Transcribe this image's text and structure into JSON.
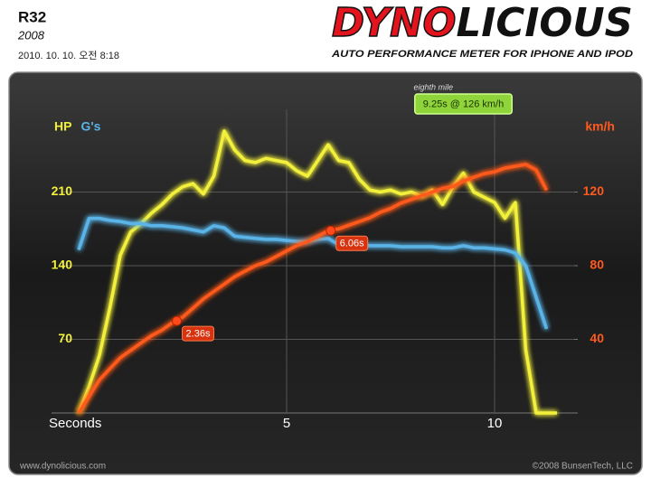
{
  "header": {
    "title": "R32",
    "subtitle": "2008",
    "date": "2010. 10. 10. 오전 8:18"
  },
  "logo": {
    "red": "DYNO",
    "black": "LICIOUS",
    "tagline": "AUTO PERFORMANCE METER FOR IPHONE AND IPOD"
  },
  "footer": {
    "left": "www.dynolicious.com",
    "right": "©2008 BunsenTech, LLC"
  },
  "chart_data": {
    "type": "line",
    "xlabel": "Seconds",
    "x": [
      0,
      0.25,
      0.5,
      0.75,
      1,
      1.25,
      1.5,
      1.75,
      2,
      2.25,
      2.5,
      2.75,
      3,
      3.25,
      3.5,
      3.75,
      4,
      4.25,
      4.5,
      4.75,
      5,
      5.25,
      5.5,
      5.75,
      6,
      6.25,
      6.5,
      6.75,
      7,
      7.25,
      7.5,
      7.75,
      8,
      8.25,
      8.5,
      8.75,
      9,
      9.25,
      9.5,
      9.75,
      10,
      10.25,
      10.5,
      10.75,
      11,
      11.25,
      11.5
    ],
    "series": [
      {
        "name": "HP",
        "color": "#f2f03a",
        "axis": "y",
        "values": [
          0,
          25,
          55,
          100,
          150,
          172,
          180,
          190,
          198,
          208,
          215,
          218,
          208,
          225,
          268,
          250,
          240,
          238,
          242,
          240,
          238,
          230,
          225,
          240,
          255,
          240,
          238,
          222,
          212,
          210,
          212,
          208,
          210,
          206,
          212,
          198,
          215,
          228,
          210,
          205,
          200,
          185,
          200,
          60,
          0,
          0,
          0
        ]
      },
      {
        "name": "G's",
        "color": "#5ab4e8",
        "axis": "y",
        "values": [
          155,
          185,
          185,
          183,
          182,
          180,
          180,
          178,
          178,
          177,
          176,
          174,
          172,
          178,
          176,
          168,
          167,
          166,
          165,
          165,
          164,
          163,
          163,
          165,
          166,
          160,
          160,
          160,
          159,
          159,
          159,
          158,
          158,
          158,
          158,
          157,
          157,
          159,
          157,
          157,
          156,
          155,
          152,
          140,
          110,
          80,
          null
        ]
      },
      {
        "name": "km/h",
        "color": "#ff5a1e",
        "axis": "y2",
        "values": [
          0,
          9,
          18,
          24,
          30,
          34,
          38,
          42,
          45,
          49,
          52,
          57,
          62,
          66,
          70,
          74,
          77,
          80,
          82,
          85,
          88,
          91,
          93,
          96,
          99,
          100,
          102,
          104,
          106,
          109,
          111,
          114,
          116,
          118,
          120,
          122,
          123,
          126,
          128,
          130,
          131,
          133,
          134,
          135,
          132,
          121,
          null
        ]
      }
    ],
    "xlim": [
      0,
      12
    ],
    "xticks": [
      5,
      10
    ],
    "ylim": [
      0,
      280
    ],
    "yticks": [
      70,
      140,
      210
    ],
    "y2lim": [
      0,
      160
    ],
    "y2ticks": [
      40,
      80,
      120
    ],
    "grid": true,
    "annotations": [
      {
        "text": "2.36s",
        "x": 2.36,
        "y": 50,
        "axis": "y2"
      },
      {
        "text": "6.06s",
        "x": 6.06,
        "y": 99,
        "axis": "y2"
      }
    ],
    "marker": {
      "label": "eighth mile",
      "text": "9.25s @ 126 km/h",
      "x": 9.25,
      "color": "#8fd43a"
    }
  }
}
